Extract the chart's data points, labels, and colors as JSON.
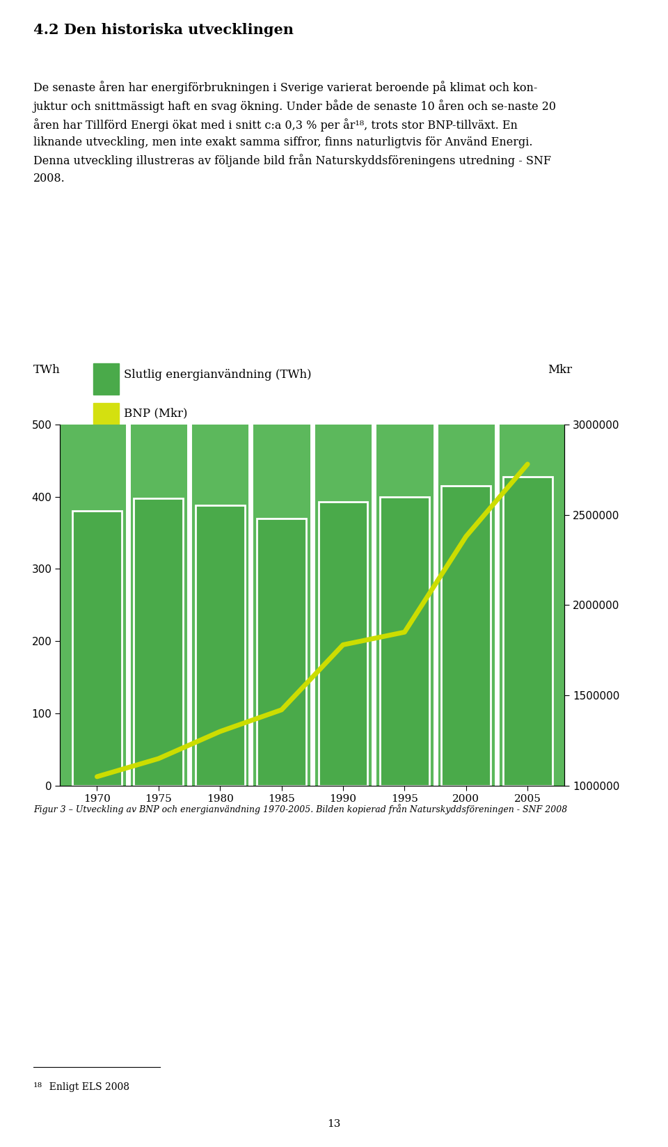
{
  "years": [
    1970,
    1975,
    1980,
    1985,
    1990,
    1995,
    2000,
    2005
  ],
  "energy_twh": [
    380,
    398,
    388,
    370,
    393,
    400,
    415,
    428
  ],
  "bnp_mkr": [
    1050000,
    1150000,
    1300000,
    1420000,
    1780000,
    1850000,
    2380000,
    2780000
  ],
  "bar_color": "#4aaa4a",
  "bar_width": 4.0,
  "line_color": "#ccdd00",
  "line_width": 5.0,
  "background_color": "#ffffff",
  "plot_bg_color": "#5cb85c",
  "left_ylim": [
    0,
    500
  ],
  "left_yticks": [
    0,
    100,
    200,
    300,
    400,
    500
  ],
  "right_ylim": [
    1000000,
    3000000
  ],
  "right_yticks": [
    1000000,
    1500000,
    2000000,
    2500000,
    3000000
  ],
  "legend_energy_label": "Slutlig energianvändning (TWh)",
  "legend_bnp_label": "BNP (Mkr)",
  "figcaption": "Figur 3 – Utveckling av BNP och energianvändning 1970-2005. Bilden kopierad från Naturskyddsföreningen - SNF 2008",
  "title_text": "4.2 Den historiska utvecklingen",
  "footnote_superscript": "18",
  "footnote_text": "  Enligt ELS 2008",
  "page_number": "13"
}
